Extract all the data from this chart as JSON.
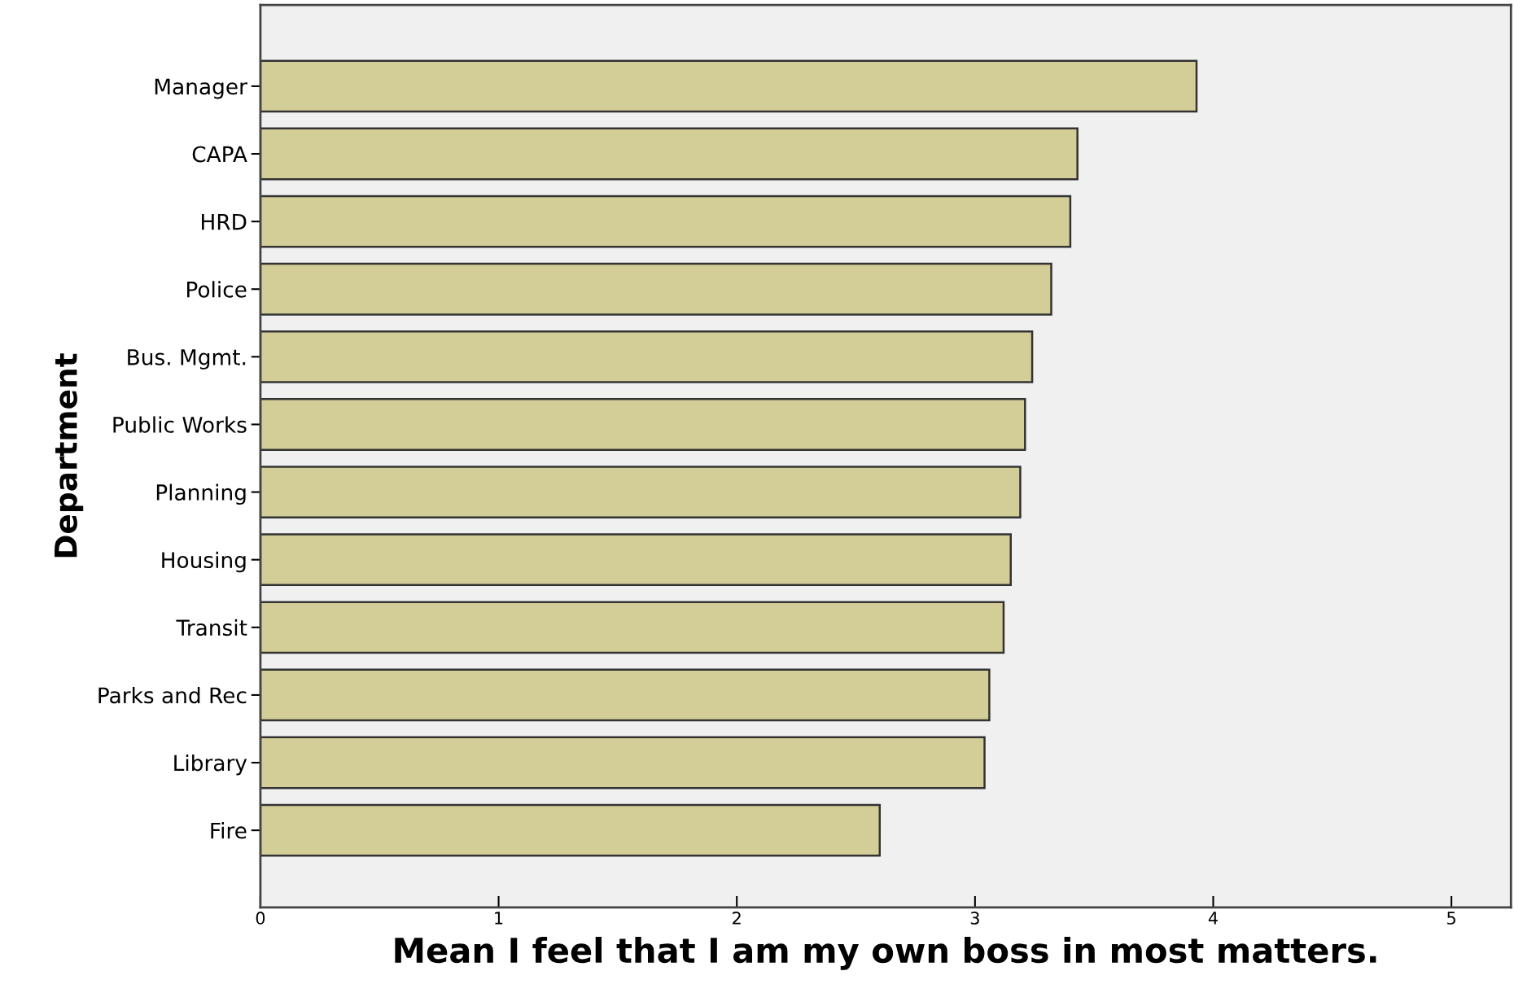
{
  "chart_data": {
    "type": "bar",
    "orientation": "horizontal",
    "xlabel": "Mean I feel that I am my own boss in most matters.",
    "ylabel": "Department",
    "categories": [
      "Manager",
      "CAPA",
      "HRD",
      "Police",
      "Bus. Mgmt.",
      "Public Works",
      "Planning",
      "Housing",
      "Transit",
      "Parks and Rec",
      "Library",
      "Fire"
    ],
    "values": [
      3.93,
      3.43,
      3.4,
      3.32,
      3.24,
      3.21,
      3.19,
      3.15,
      3.12,
      3.06,
      3.04,
      2.6
    ],
    "color": "#d3ce97",
    "xlim": [
      0,
      5.25
    ],
    "xticks": [
      0,
      1,
      2,
      3,
      4,
      5
    ],
    "grid": false
  }
}
